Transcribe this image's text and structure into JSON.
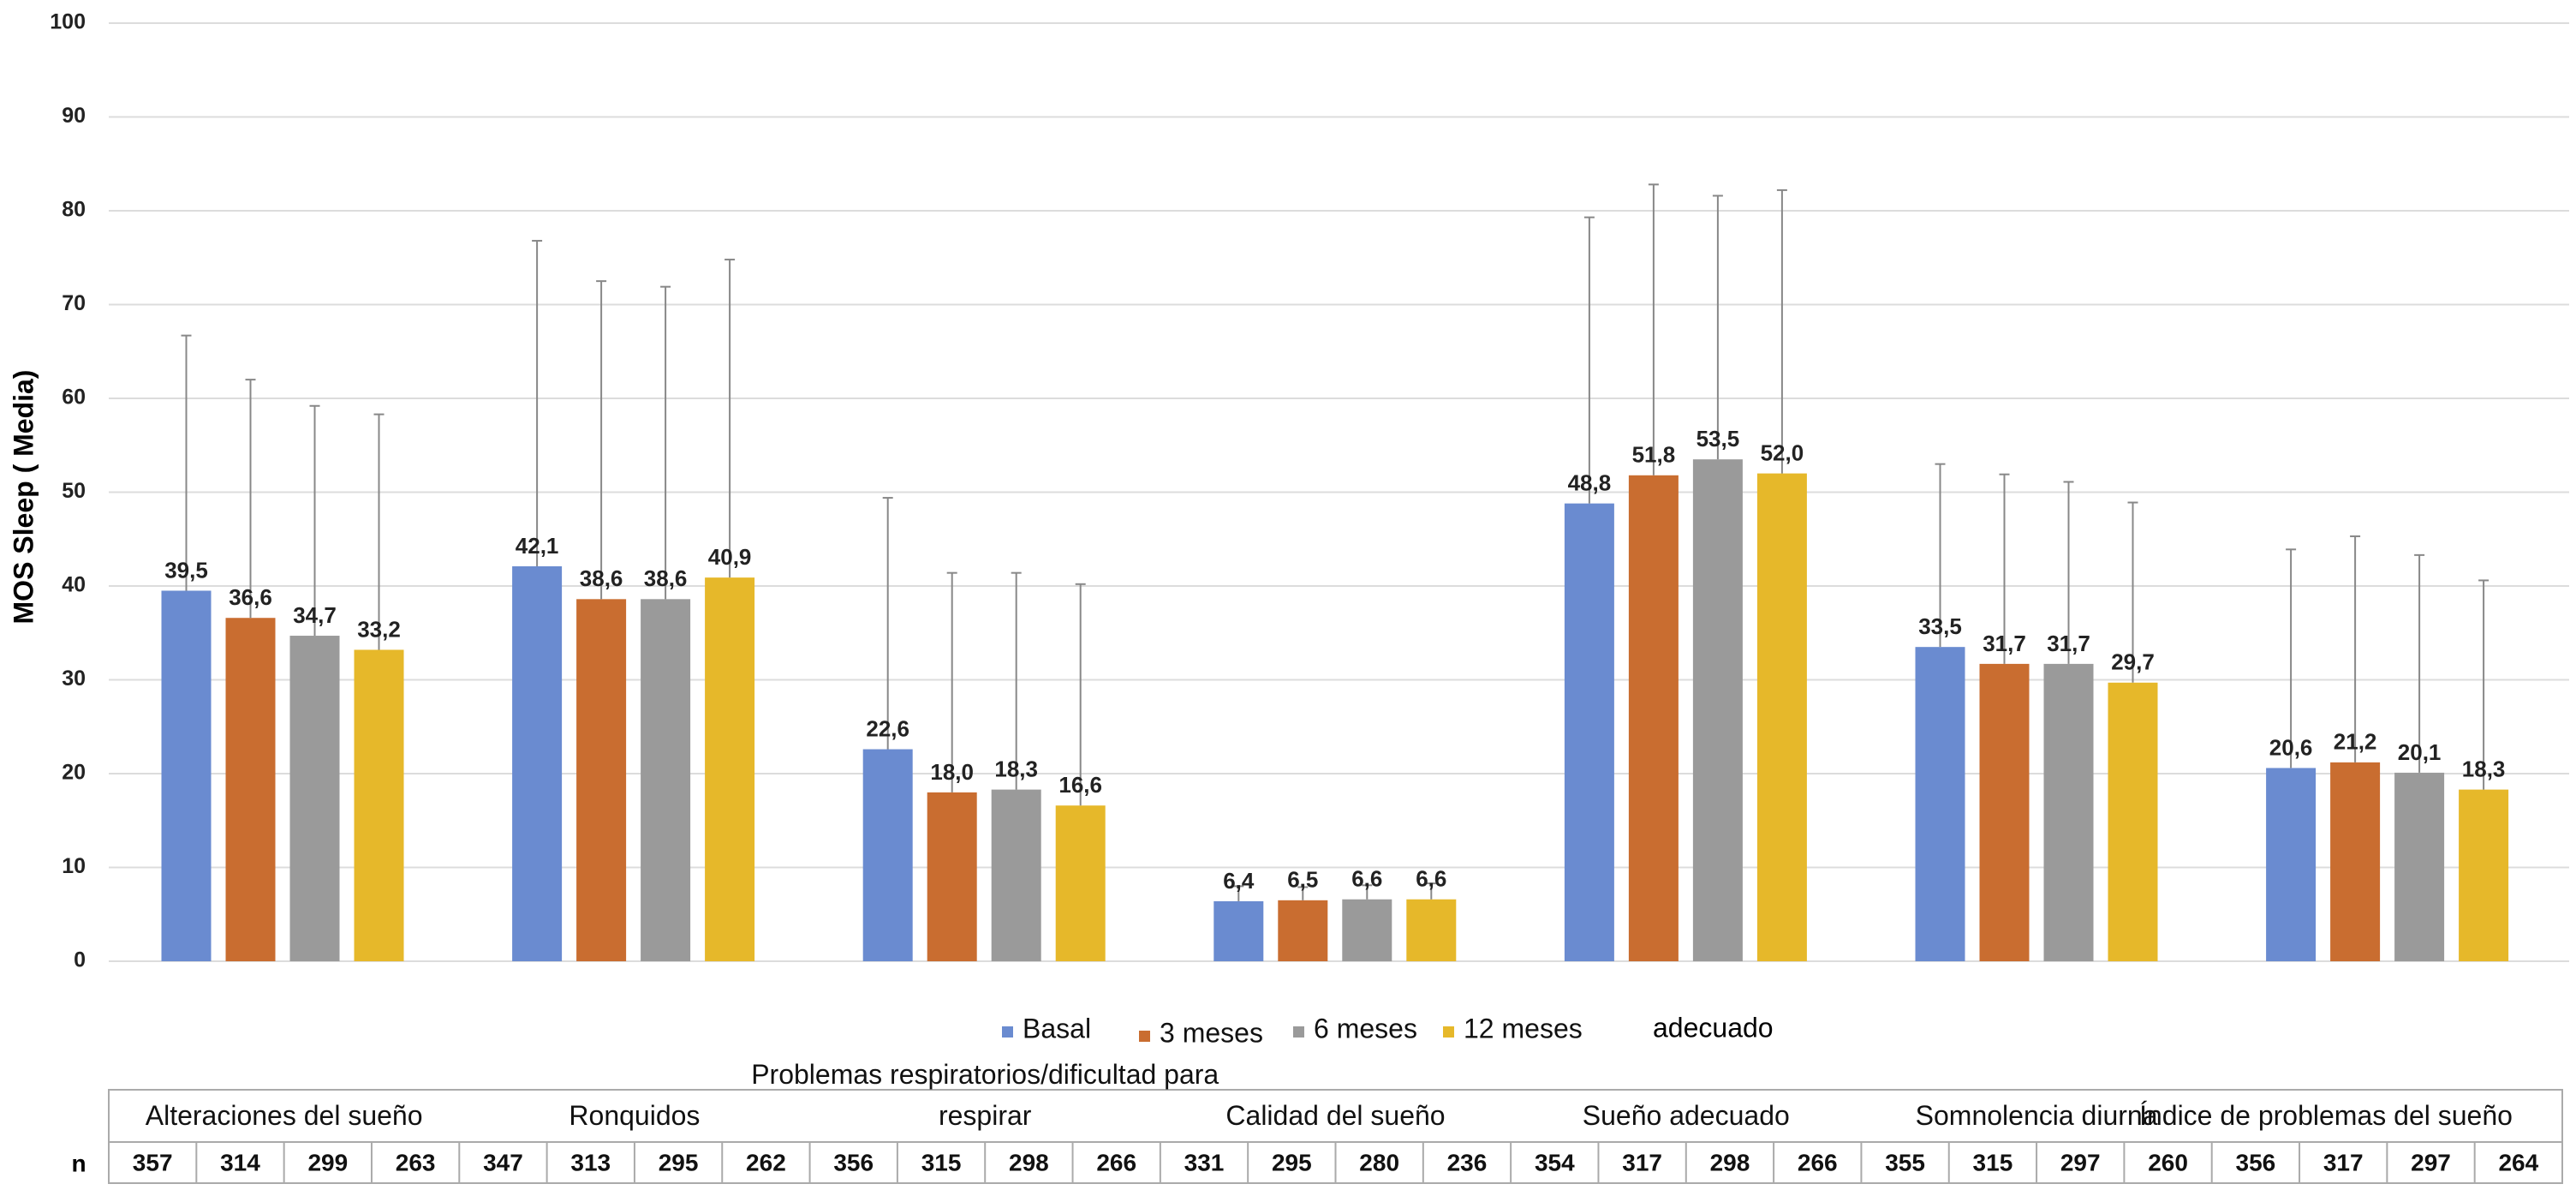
{
  "chart_data": {
    "type": "bar",
    "y_label": "MOS Sleep ( Media)",
    "categories": [
      "Alteraciones del sueño",
      "Ronquidos",
      "Problemas respiratorios/dificultad para respirar",
      "Calidad del sueño",
      "Sueño adecuado",
      "Somnolencia diurna",
      "Índice de problemas del sueño"
    ],
    "series": [
      {
        "name": "Basal",
        "color": "#6a8bd0",
        "values": [
          39.5,
          42.1,
          22.6,
          6.4,
          48.8,
          33.5,
          20.6
        ],
        "value_labels": [
          "39,5",
          "42,1",
          "22,6",
          "6,4",
          "48,8",
          "33,5",
          "20,6"
        ],
        "errors": [
          27.2,
          34.7,
          26.8,
          1.6,
          30.5,
          19.5,
          23.3
        ]
      },
      {
        "name": "3 meses",
        "color": "#c96d30",
        "values": [
          36.6,
          38.6,
          18.0,
          6.5,
          51.8,
          31.7,
          21.2
        ],
        "value_labels": [
          "36,6",
          "38,6",
          "18,0",
          "6,5",
          "51,8",
          "31,7",
          "21,2"
        ],
        "errors": [
          25.4,
          33.9,
          23.4,
          1.4,
          31.0,
          20.2,
          24.1
        ]
      },
      {
        "name": "6 meses",
        "color": "#9a9a9a",
        "values": [
          34.7,
          38.6,
          18.3,
          6.6,
          53.5,
          31.7,
          20.1
        ],
        "value_labels": [
          "34,7",
          "38,6",
          "18,3",
          "6,6",
          "53,5",
          "31,7",
          "20,1"
        ],
        "errors": [
          24.5,
          33.3,
          23.1,
          1.5,
          28.1,
          19.4,
          23.2
        ]
      },
      {
        "name": "12 meses",
        "color": "#e6b82a",
        "values": [
          33.2,
          40.9,
          16.6,
          6.6,
          52.0,
          29.7,
          18.3
        ],
        "value_labels": [
          "33,2",
          "40,9",
          "16,6",
          "6,6",
          "52,0",
          "29,7",
          "18,3"
        ],
        "errors": [
          25.1,
          33.9,
          23.6,
          1.7,
          30.2,
          19.2,
          22.3
        ]
      }
    ],
    "ylim": [
      0,
      100
    ],
    "yticks": [
      0,
      10,
      20,
      30,
      40,
      50,
      60,
      70,
      80,
      90,
      100
    ],
    "grid": true,
    "annotation": "adecuado",
    "table_row_label": "n",
    "sample_sizes": [
      [
        357,
        314,
        299,
        263
      ],
      [
        347,
        313,
        295,
        262
      ],
      [
        356,
        315,
        298,
        266
      ],
      [
        331,
        295,
        280,
        236
      ],
      [
        354,
        317,
        298,
        266
      ],
      [
        355,
        315,
        297,
        260
      ],
      [
        356,
        317,
        297,
        264
      ]
    ]
  }
}
